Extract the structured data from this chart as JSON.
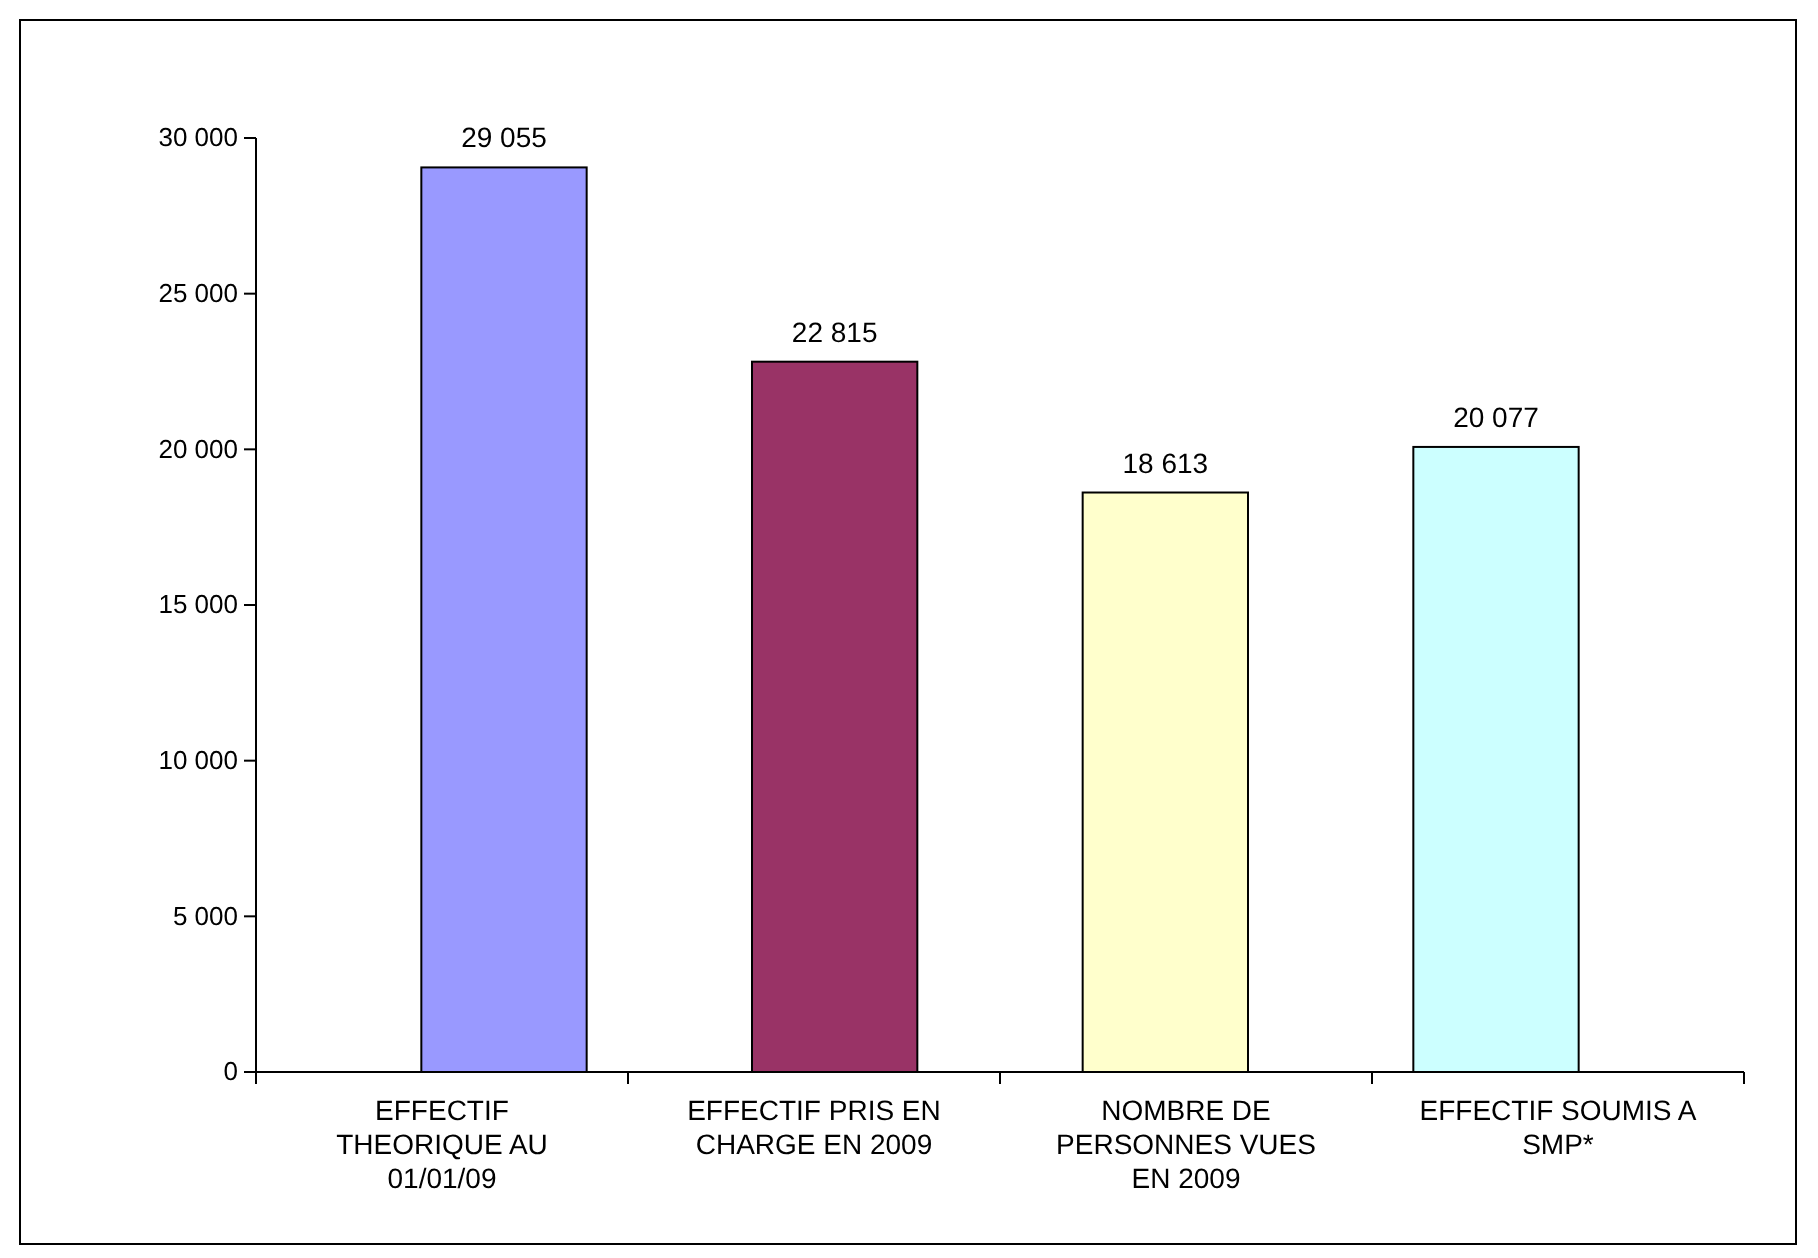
{
  "chart_data": {
    "type": "bar",
    "categories": [
      "EFFECTIF THEORIQUE AU 01/01/09",
      "EFFECTIF PRIS EN CHARGE EN 2009",
      "NOMBRE DE PERSONNES VUES EN 2009",
      "EFFECTIF SOUMIS A SMP*"
    ],
    "values": [
      29055,
      22815,
      18613,
      20077
    ],
    "colors": [
      "#9999ff",
      "#993366",
      "#ffffcc",
      "#ccffff"
    ],
    "value_labels": [
      "29 055",
      "22 815",
      "18 613",
      "20 077"
    ],
    "ylim": [
      0,
      30000
    ],
    "yticks": [
      0,
      {
        "value": 5000,
        "label": "5 000"
      },
      {
        "value": 10000,
        "label": "10 000"
      },
      {
        "value": 15000,
        "label": "15 000"
      },
      {
        "value": 20000,
        "label": "20 000"
      },
      {
        "value": 25000,
        "label": "25 000"
      },
      {
        "value": 30000,
        "label": "30 000"
      }
    ],
    "grid": false
  }
}
